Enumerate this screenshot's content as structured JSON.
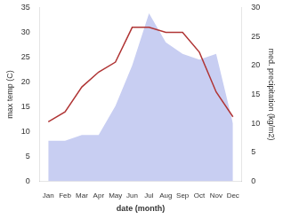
{
  "chart_data": {
    "type": "line",
    "categories": [
      "Jan",
      "Feb",
      "Mar",
      "Apr",
      "May",
      "Jun",
      "Jul",
      "Aug",
      "Sep",
      "Oct",
      "Nov",
      "Dec"
    ],
    "xlabel": "date (month)",
    "ylabel": "max temp (C)",
    "y2label": "med. precipitation (kg/m2)",
    "series": [
      {
        "type": "area",
        "axis": "y2",
        "color": "#c8cef2",
        "values": [
          7,
          7,
          8,
          8,
          13,
          20,
          29,
          24,
          22,
          21,
          22,
          10
        ]
      },
      {
        "type": "line",
        "color": "#b03535",
        "values": [
          12,
          14,
          19,
          22,
          24,
          31,
          31,
          30,
          30,
          26,
          18,
          13
        ]
      }
    ],
    "ylim": [
      0,
      35
    ],
    "yticks": [
      0,
      5,
      10,
      15,
      20,
      25,
      30,
      35
    ],
    "y2lim": [
      0,
      30
    ],
    "y2ticks": [
      0,
      5,
      10,
      15,
      20,
      25,
      30
    ],
    "grid": false
  }
}
